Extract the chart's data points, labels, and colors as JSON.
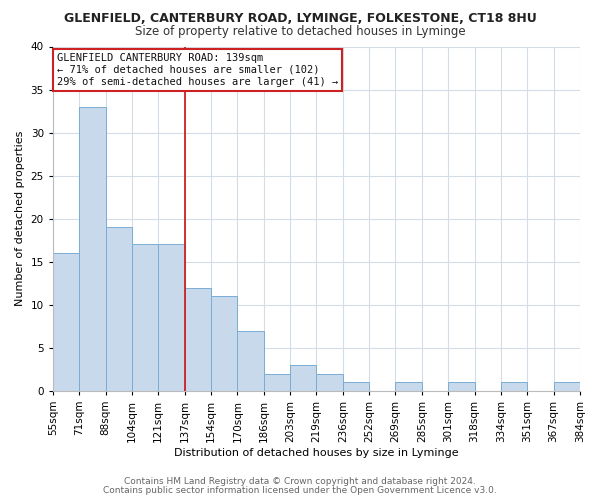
{
  "title": "GLENFIELD, CANTERBURY ROAD, LYMINGE, FOLKESTONE, CT18 8HU",
  "subtitle": "Size of property relative to detached houses in Lyminge",
  "xlabel": "Distribution of detached houses by size in Lyminge",
  "ylabel": "Number of detached properties",
  "bar_values": [
    16,
    33,
    19,
    17,
    17,
    12,
    11,
    7,
    2,
    3,
    2,
    1,
    0,
    1,
    0,
    1,
    0,
    1,
    0,
    1
  ],
  "bin_labels": [
    "55sqm",
    "71sqm",
    "88sqm",
    "104sqm",
    "121sqm",
    "137sqm",
    "154sqm",
    "170sqm",
    "186sqm",
    "203sqm",
    "219sqm",
    "236sqm",
    "252sqm",
    "269sqm",
    "285sqm",
    "301sqm",
    "318sqm",
    "334sqm",
    "351sqm",
    "367sqm",
    "384sqm"
  ],
  "bar_color": "#c8d9ec",
  "bar_edge_color": "#7aadd4",
  "vline_color": "#cc2222",
  "vline_x": 5,
  "ylim": [
    0,
    40
  ],
  "yticks": [
    0,
    5,
    10,
    15,
    20,
    25,
    30,
    35,
    40
  ],
  "annotation_title": "GLENFIELD CANTERBURY ROAD: 139sqm",
  "annotation_line1": "← 71% of detached houses are smaller (102)",
  "annotation_line2": "29% of semi-detached houses are larger (41) →",
  "footer1": "Contains HM Land Registry data © Crown copyright and database right 2024.",
  "footer2": "Contains public sector information licensed under the Open Government Licence v3.0.",
  "grid_color": "#d4dce8",
  "background_color": "#ffffff",
  "title_fontsize": 9,
  "subtitle_fontsize": 8.5,
  "axis_label_fontsize": 8,
  "tick_fontsize": 7.5,
  "annotation_fontsize": 7.5,
  "footer_fontsize": 6.5
}
